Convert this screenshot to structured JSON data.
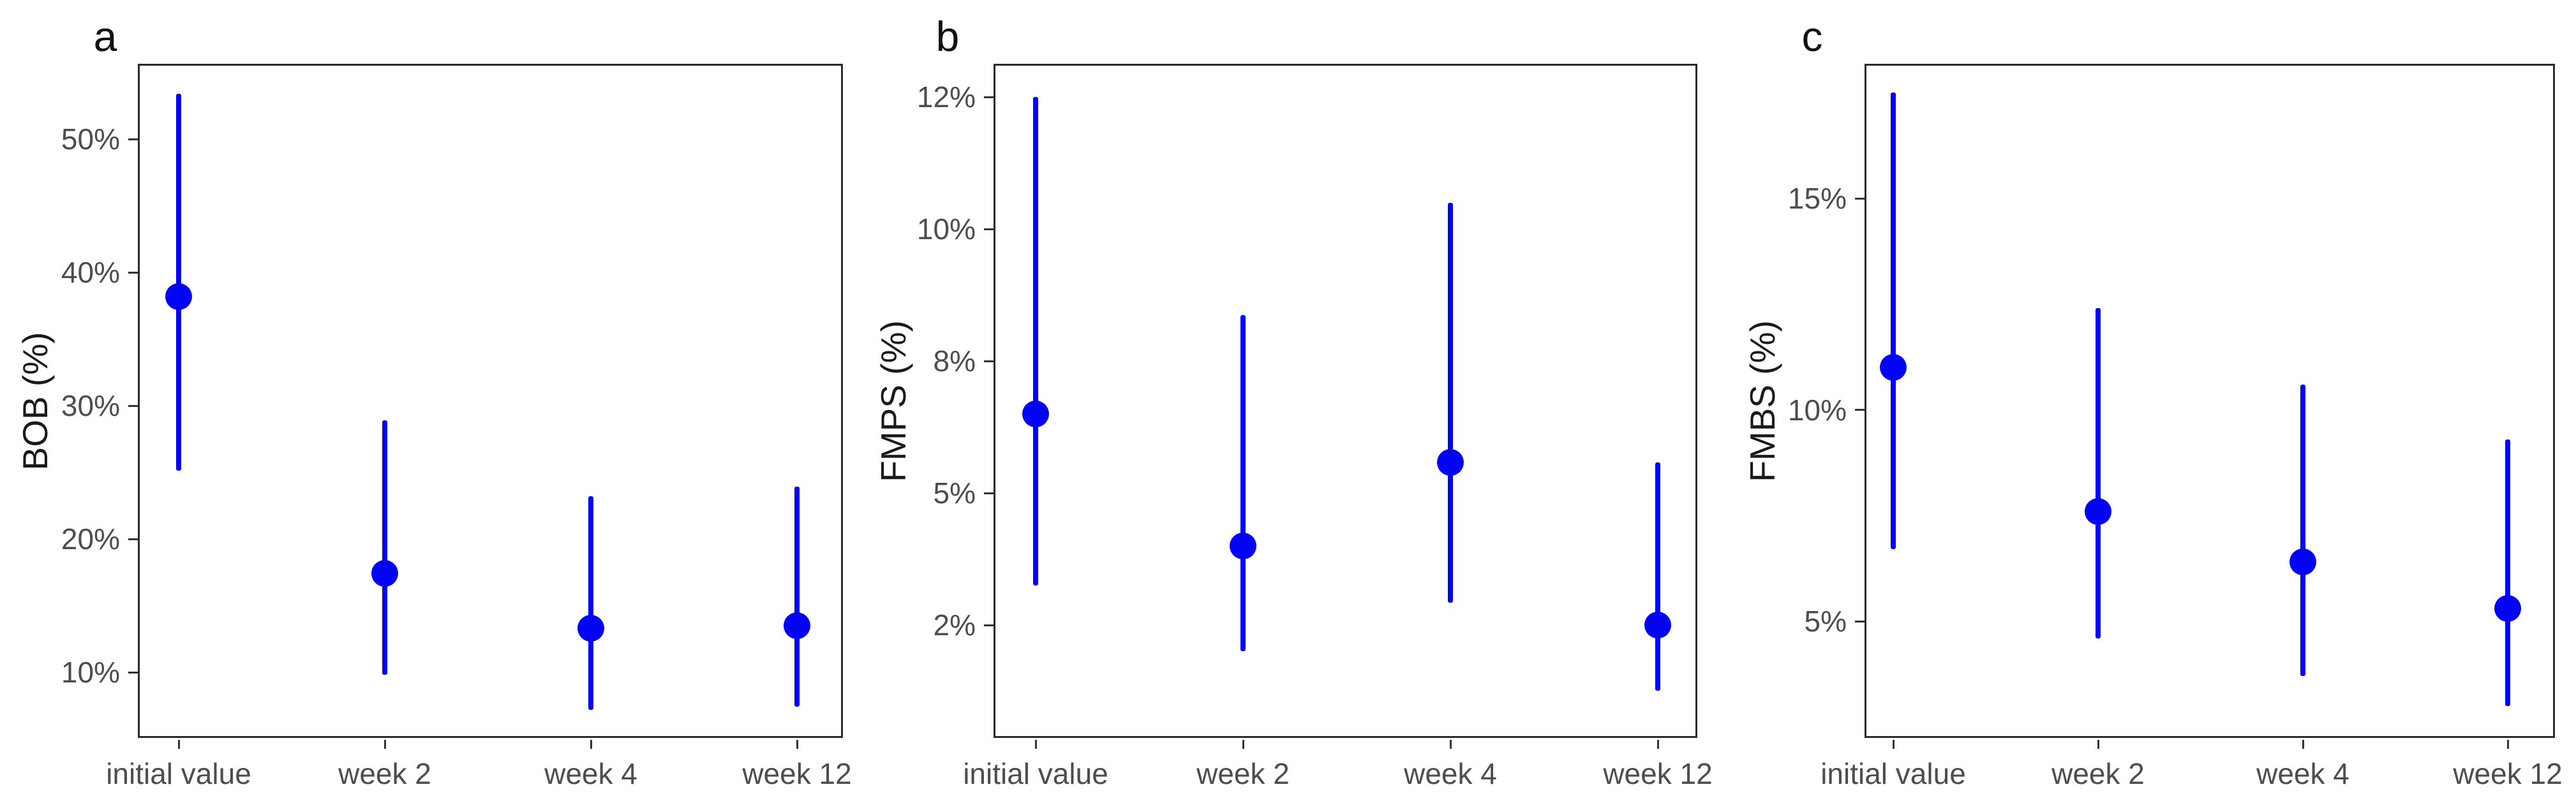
{
  "figure": {
    "background_color": "#ffffff",
    "point_color": "#0404F5",
    "axis_text_color": "#4d4d4d",
    "axis_title_color": "#1a1a1a",
    "panel_border_color": "#2b2b2b"
  },
  "chart_data": [
    {
      "type": "scatter",
      "subtype": "point-range (mean with confidence interval)",
      "panel_label": "a",
      "title": "",
      "xlabel": "",
      "ylabel": "BOB (%)",
      "categories": [
        "initial value",
        "week 2",
        "week 4",
        "week 12"
      ],
      "y_tick_labels": [
        "50%",
        "40%",
        "30%",
        "20%",
        "10%"
      ],
      "y_tick_values": [
        50,
        40,
        30,
        20,
        10
      ],
      "y_scale_note": "ticks equally spaced in pixels, linear",
      "ylim_visible": [
        5.1,
        55.6
      ],
      "grid": "off",
      "legend": "none",
      "series": [
        {
          "name": "BOB",
          "points": [
            {
              "x": "initial value",
              "y": 38.2,
              "ci_low": 25.1,
              "ci_high": 53.4
            },
            {
              "x": "week 2",
              "y": 17.4,
              "ci_low": 9.8,
              "ci_high": 28.9
            },
            {
              "x": "week 4",
              "y": 13.3,
              "ci_low": 7.2,
              "ci_high": 23.2
            },
            {
              "x": "week 12",
              "y": 13.5,
              "ci_low": 7.4,
              "ci_high": 23.9
            }
          ]
        }
      ]
    },
    {
      "type": "scatter",
      "subtype": "point-range (mean with confidence interval)",
      "panel_label": "b",
      "title": "",
      "xlabel": "",
      "ylabel": "FMPS (%)",
      "categories": [
        "initial value",
        "week 2",
        "week 4",
        "week 12"
      ],
      "y_tick_labels": [
        "12%",
        "10%",
        "8%",
        "5%",
        "2%"
      ],
      "y_tick_values": [
        12,
        10,
        8,
        5,
        2
      ],
      "y_scale_note": "ticks equally spaced in pixels although value steps differ (non-linear axis)",
      "ylim_visible": [
        0.2,
        12.5
      ],
      "grid": "off",
      "legend": "none",
      "series": [
        {
          "name": "FMPS",
          "points": [
            {
              "x": "initial value",
              "y": 6.8,
              "ci_low": 2.9,
              "ci_high": 12.0
            },
            {
              "x": "week 2",
              "y": 3.8,
              "ci_low": 1.4,
              "ci_high": 8.7
            },
            {
              "x": "week 4",
              "y": 5.7,
              "ci_low": 2.5,
              "ci_high": 10.4
            },
            {
              "x": "week 12",
              "y": 2.0,
              "ci_low": 0.5,
              "ci_high": 5.7
            }
          ]
        }
      ]
    },
    {
      "type": "scatter",
      "subtype": "point-range (mean with confidence interval)",
      "panel_label": "c",
      "title": "",
      "xlabel": "",
      "ylabel": "FMBS (%)",
      "categories": [
        "initial value",
        "week 2",
        "week 4",
        "week 12"
      ],
      "y_tick_labels": [
        "15%",
        "10%",
        "5%"
      ],
      "y_tick_values": [
        15,
        10,
        5
      ],
      "y_scale_note": "ticks equally spaced in pixels, linear",
      "ylim_visible": [
        2.3,
        18.2
      ],
      "grid": "off",
      "legend": "none",
      "series": [
        {
          "name": "FMBS",
          "points": [
            {
              "x": "initial value",
              "y": 11.0,
              "ci_low": 6.7,
              "ci_high": 17.5
            },
            {
              "x": "week 2",
              "y": 7.6,
              "ci_low": 4.6,
              "ci_high": 12.4
            },
            {
              "x": "week 4",
              "y": 6.4,
              "ci_low": 3.7,
              "ci_high": 10.6
            },
            {
              "x": "week 12",
              "y": 5.3,
              "ci_low": 3.0,
              "ci_high": 9.3
            }
          ]
        }
      ]
    }
  ]
}
